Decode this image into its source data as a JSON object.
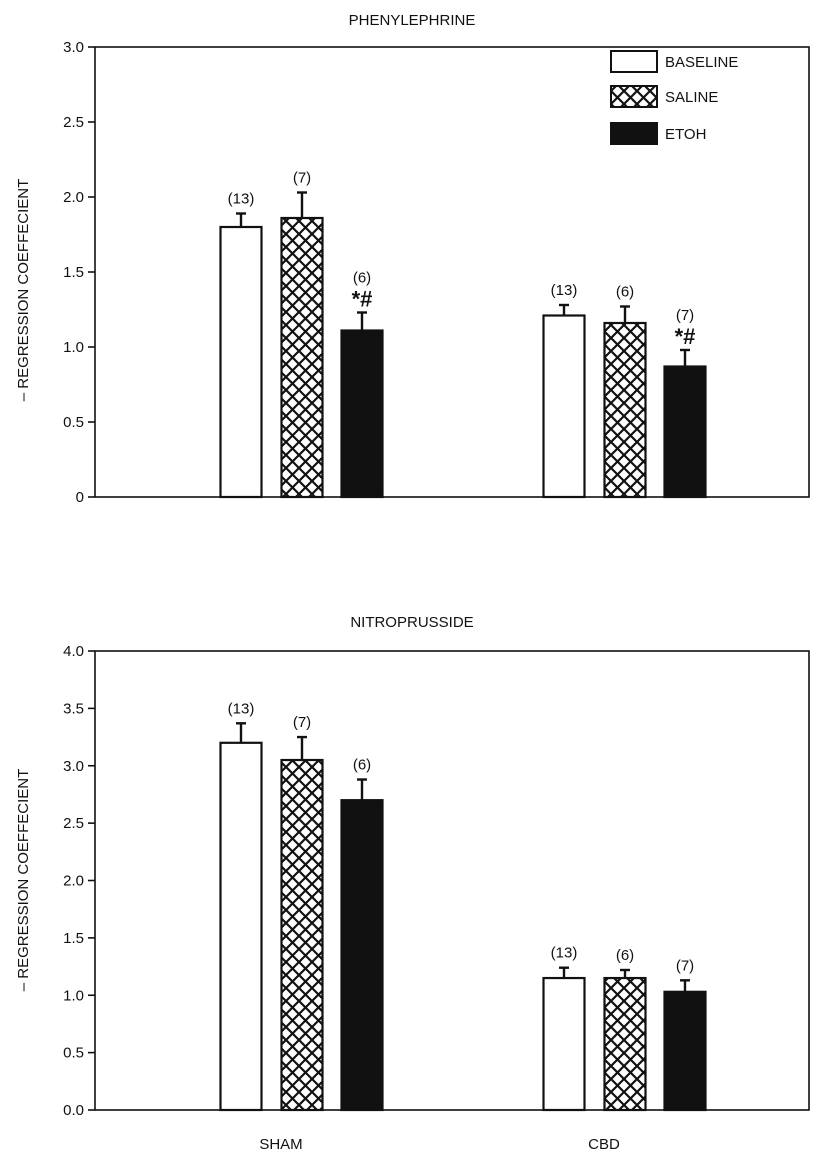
{
  "chart_data": [
    {
      "type": "bar",
      "title": "PHENYLEPHRINE",
      "ylabel": "– REGRESSION COEFFECIENT",
      "xlabel": "",
      "ylim": [
        0,
        3.0
      ],
      "yticks": [
        "0",
        "0.5",
        "1.0",
        "1.5",
        "2.0",
        "2.5",
        "3.0"
      ],
      "categories": [
        "SHAM",
        "CBD"
      ],
      "category_labels_shown": false,
      "legend": {
        "placement": "top-right",
        "entries": [
          "BASELINE",
          "SALINE",
          "ETOH"
        ]
      },
      "series": [
        {
          "name": "BASELINE",
          "values": [
            1.8,
            1.21
          ],
          "errors": [
            0.09,
            0.07
          ],
          "n_labels": [
            "(13)",
            "(13)"
          ],
          "markers": [
            "",
            ""
          ]
        },
        {
          "name": "SALINE",
          "values": [
            1.86,
            1.16
          ],
          "errors": [
            0.17,
            0.11
          ],
          "n_labels": [
            "(7)",
            "(6)"
          ],
          "markers": [
            "",
            ""
          ]
        },
        {
          "name": "ETOH",
          "values": [
            1.11,
            0.87
          ],
          "errors": [
            0.12,
            0.11
          ],
          "n_labels": [
            "(6)",
            "(7)"
          ],
          "markers": [
            "*#",
            "*#"
          ]
        }
      ]
    },
    {
      "type": "bar",
      "title": "NITROPRUSSIDE",
      "ylabel": "– REGRESSION COEFFECIENT",
      "xlabel": "",
      "ylim": [
        0,
        4.0
      ],
      "yticks": [
        "0.0",
        "0.5",
        "1.0",
        "1.5",
        "2.0",
        "2.5",
        "3.0",
        "3.5",
        "4.0"
      ],
      "categories": [
        "SHAM",
        "CBD"
      ],
      "category_labels_shown": true,
      "series": [
        {
          "name": "BASELINE",
          "values": [
            3.2,
            1.15
          ],
          "errors": [
            0.17,
            0.09
          ],
          "n_labels": [
            "(13)",
            "(13)"
          ]
        },
        {
          "name": "SALINE",
          "values": [
            3.05,
            1.15
          ],
          "errors": [
            0.2,
            0.07
          ],
          "n_labels": [
            "(7)",
            "(6)"
          ]
        },
        {
          "name": "ETOH",
          "values": [
            2.7,
            1.03
          ],
          "errors": [
            0.18,
            0.1
          ],
          "n_labels": [
            "(6)",
            "(7)"
          ]
        }
      ]
    }
  ]
}
